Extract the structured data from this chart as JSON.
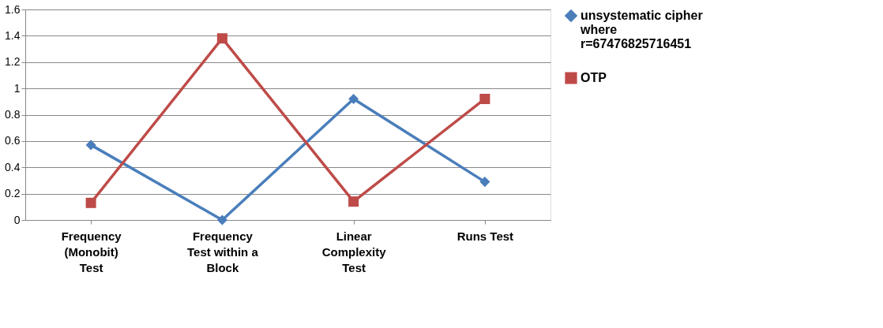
{
  "chart_data": {
    "type": "line",
    "categories": [
      "Frequency (Monobit) Test",
      "Frequency Test within a Block",
      "Linear Complexity Test",
      "Runs Test"
    ],
    "series": [
      {
        "name": "unsystematic cipher where r=67476825716451",
        "color": "#4a7ebb",
        "marker": "diamond",
        "values": [
          0.57,
          0,
          0.92,
          0.29
        ]
      },
      {
        "name": "OTP",
        "color": "#be4b48",
        "marker": "square",
        "values": [
          0.13,
          1.38,
          0.14,
          0.92
        ]
      }
    ],
    "ylim": [
      0,
      1.6
    ],
    "yticks": [
      0,
      0.2,
      0.4,
      0.6,
      0.8,
      1,
      1.2,
      1.4,
      1.6
    ],
    "grid": "y",
    "legend": "right"
  }
}
